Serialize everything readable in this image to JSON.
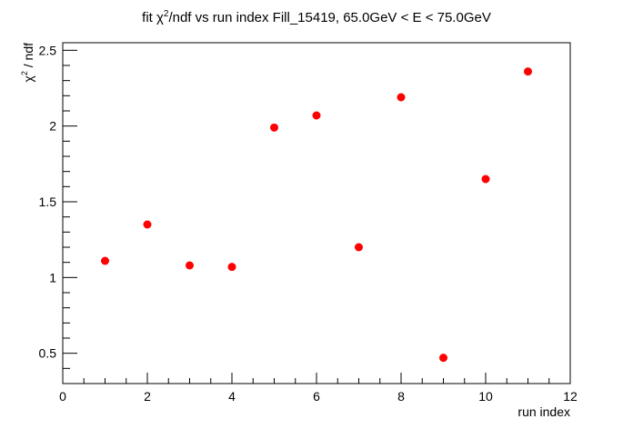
{
  "chart_data": {
    "type": "scatter",
    "title_prefix": "fit χ",
    "title_sup": "2",
    "title_suffix": "/ndf vs run index Fill_15419, 65.0GeV < E < 75.0GeV",
    "xlabel": "run index",
    "ylabel_prefix": "χ",
    "ylabel_sup": "2",
    "ylabel_suffix": " / ndf",
    "xlim": [
      0,
      12
    ],
    "ylim": [
      0.3,
      2.55
    ],
    "x_ticks": [
      0,
      2,
      4,
      6,
      8,
      10,
      12
    ],
    "x_tick_labels": [
      "0",
      "2",
      "4",
      "6",
      "8",
      "10",
      "12"
    ],
    "y_ticks": [
      0.5,
      1,
      1.5,
      2,
      2.5
    ],
    "y_tick_labels": [
      "0.5",
      "1",
      "1.5",
      "2",
      "2.5"
    ],
    "grid": false,
    "marker_color": "#ff0000",
    "series": [
      {
        "x": [
          1,
          2,
          3,
          4,
          5,
          6,
          7,
          8,
          9,
          10,
          11
        ],
        "y": [
          1.11,
          1.35,
          1.08,
          1.07,
          1.99,
          2.07,
          1.2,
          2.19,
          0.47,
          1.65,
          2.36
        ]
      }
    ]
  }
}
